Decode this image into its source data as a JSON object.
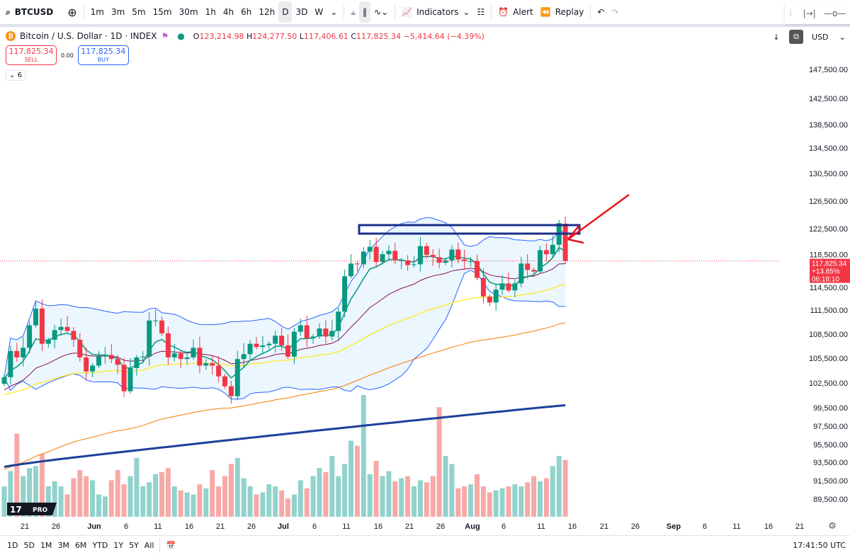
{
  "toolbar": {
    "symbol": "BTCUSD",
    "intervals": [
      "1m",
      "3m",
      "5m",
      "15m",
      "30m",
      "1h",
      "4h",
      "6h",
      "12h",
      "D",
      "3D",
      "W"
    ],
    "active_interval": "D",
    "indicators": "Indicators",
    "alert": "Alert",
    "replay": "Replay"
  },
  "legend": {
    "title": "Bitcoin / U.S. Dollar · 1D · INDEX",
    "o_label": "O",
    "o": "123,214.98",
    "h_label": "H",
    "h": "124,277.50",
    "l_label": "L",
    "l": "117,406.61",
    "c_label": "C",
    "c": "117,825.34",
    "change": "−5,414.64 (−4.39%)",
    "sell_price": "117,825.34",
    "sell_label": "SELL",
    "spread": "0.00",
    "buy_price": "117,825.34",
    "buy_label": "BUY",
    "collapsed_count": "6",
    "currency": "USD"
  },
  "price_label": {
    "price": "117,825.34",
    "change": "+13.85%",
    "countdown": "06:18:10",
    "color": "#f23645"
  },
  "bottom": {
    "ranges": [
      "1D",
      "5D",
      "1M",
      "3M",
      "6M",
      "YTD",
      "1Y",
      "5Y",
      "All"
    ],
    "time": "17:41:50 UTC"
  },
  "logo": "TV PRO",
  "colors": {
    "up": "#089981",
    "down": "#f23645",
    "vol_up": "#92d2cc",
    "vol_down": "#f7a9a7",
    "annotation_box": "#1a2f8a",
    "arrow": "#e8141a"
  },
  "chart_data": {
    "type": "candlestick",
    "y_ticks": [
      "147,500.00",
      "142,500.00",
      "138,500.00",
      "134,500.00",
      "130,500.00",
      "126,500.00",
      "122,500.00",
      "118,500.00",
      "114,500.00",
      "111,500.00",
      "108,500.00",
      "105,500.00",
      "102,500.00",
      "99,500.00",
      "97,500.00",
      "95,500.00",
      "93,500.00",
      "91,500.00",
      "89,500.00"
    ],
    "x_ticks": [
      "21",
      "26",
      "Jun",
      "6",
      "11",
      "16",
      "21",
      "26",
      "Jul",
      "6",
      "11",
      "16",
      "21",
      "26",
      "Aug",
      "6",
      "11",
      "16",
      "21",
      "26",
      "Sep",
      "6",
      "11",
      "16",
      "21"
    ],
    "start_date": "May 17",
    "last_ohlc": [
      123214.98,
      124277.5,
      117406.61,
      117825.34
    ],
    "closes": [
      103200,
      106400,
      105600,
      106800,
      109600,
      111700,
      107300,
      107800,
      109000,
      109400,
      108900,
      107800,
      105600,
      103900,
      104600,
      105700,
      105900,
      105400,
      104700,
      101500,
      104300,
      105600,
      105700,
      110200,
      110200,
      108600,
      105600,
      106100,
      105400,
      105600,
      106800,
      104600,
      104900,
      104600,
      103300,
      102100,
      100900,
      105400,
      106000,
      107300,
      106900,
      107100,
      107300,
      108300,
      107100,
      105700,
      108800,
      109600,
      108000,
      108200,
      109200,
      108200,
      108900,
      111300,
      115900,
      117500,
      117400,
      119100,
      119800,
      117700,
      118700,
      119200,
      117900,
      117900,
      117300,
      117400,
      119900,
      118600,
      118300,
      117600,
      117900,
      119400,
      118000,
      117800,
      117800,
      115700,
      113300,
      112500,
      114200,
      115000,
      114100,
      115000,
      117500,
      116700,
      116500,
      119300,
      118700,
      120100,
      123300,
      117825
    ],
    "volumes": [
      30,
      45,
      82,
      40,
      48,
      50,
      62,
      30,
      35,
      30,
      22,
      38,
      46,
      40,
      36,
      22,
      20,
      36,
      46,
      32,
      40,
      58,
      30,
      34,
      42,
      44,
      48,
      30,
      26,
      24,
      22,
      32,
      28,
      46,
      30,
      40,
      52,
      58,
      38,
      30,
      22,
      24,
      32,
      30,
      26,
      18,
      22,
      36,
      28,
      40,
      48,
      44,
      60,
      40,
      52,
      75,
      70,
      120,
      42,
      55,
      40,
      45,
      35,
      38,
      40,
      30,
      36,
      34,
      40,
      108,
      60,
      52,
      28,
      30,
      32,
      42,
      30,
      24,
      26,
      28,
      30,
      32,
      30,
      34,
      40,
      35,
      38,
      50,
      60,
      56
    ]
  }
}
